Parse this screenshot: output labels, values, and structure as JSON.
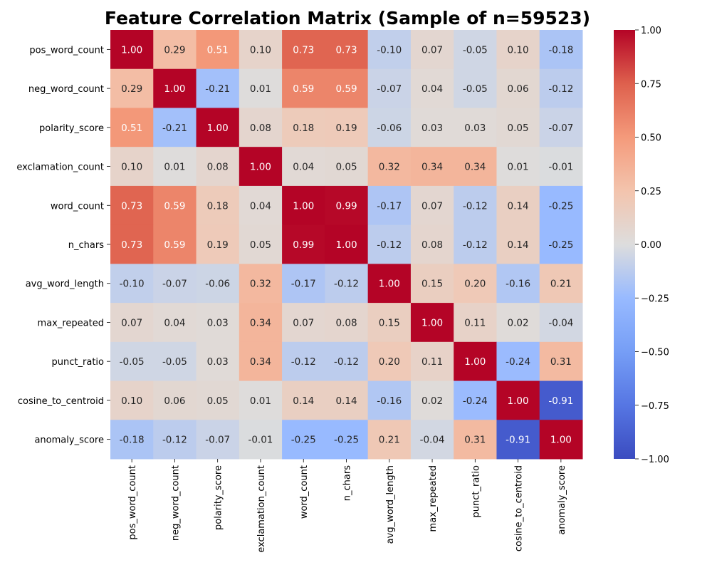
{
  "chart_data": {
    "type": "heatmap",
    "title": "Feature Correlation Matrix (Sample of n=59523)",
    "xlabel": "",
    "ylabel": "",
    "labels": [
      "pos_word_count",
      "neg_word_count",
      "polarity_score",
      "exclamation_count",
      "word_count",
      "n_chars",
      "avg_word_length",
      "max_repeated",
      "punct_ratio",
      "cosine_to_centroid",
      "anomaly_score"
    ],
    "matrix": [
      [
        1.0,
        0.29,
        0.51,
        0.1,
        0.73,
        0.73,
        -0.1,
        0.07,
        -0.05,
        0.1,
        -0.18
      ],
      [
        0.29,
        1.0,
        -0.21,
        0.01,
        0.59,
        0.59,
        -0.07,
        0.04,
        -0.05,
        0.06,
        -0.12
      ],
      [
        0.51,
        -0.21,
        1.0,
        0.08,
        0.18,
        0.19,
        -0.06,
        0.03,
        0.03,
        0.05,
        -0.07
      ],
      [
        0.1,
        0.01,
        0.08,
        1.0,
        0.04,
        0.05,
        0.32,
        0.34,
        0.34,
        0.01,
        -0.01
      ],
      [
        0.73,
        0.59,
        0.18,
        0.04,
        1.0,
        0.99,
        -0.17,
        0.07,
        -0.12,
        0.14,
        -0.25
      ],
      [
        0.73,
        0.59,
        0.19,
        0.05,
        0.99,
        1.0,
        -0.12,
        0.08,
        -0.12,
        0.14,
        -0.25
      ],
      [
        -0.1,
        -0.07,
        -0.06,
        0.32,
        -0.17,
        -0.12,
        1.0,
        0.15,
        0.2,
        -0.16,
        0.21
      ],
      [
        0.07,
        0.04,
        0.03,
        0.34,
        0.07,
        0.08,
        0.15,
        1.0,
        0.11,
        0.02,
        -0.04
      ],
      [
        -0.05,
        -0.05,
        0.03,
        0.34,
        -0.12,
        -0.12,
        0.2,
        0.11,
        1.0,
        -0.24,
        0.31
      ],
      [
        0.1,
        0.06,
        0.05,
        0.01,
        0.14,
        0.14,
        -0.16,
        0.02,
        -0.24,
        1.0,
        -0.91
      ],
      [
        -0.18,
        -0.12,
        -0.07,
        -0.01,
        -0.25,
        -0.25,
        0.21,
        -0.04,
        0.31,
        -0.91,
        1.0
      ]
    ],
    "colormap": "coolwarm",
    "vmin": -1.0,
    "vmax": 1.0,
    "colorbar": {
      "ticks": [
        1.0,
        0.75,
        0.5,
        0.25,
        0.0,
        -0.25,
        -0.5,
        -0.75,
        -1.0
      ],
      "tick_labels": [
        "1.00",
        "0.75",
        "0.50",
        "0.25",
        "0.00",
        "−0.25",
        "−0.50",
        "−0.75",
        "−1.00"
      ]
    },
    "grid": false,
    "legend": "colorbar-right"
  }
}
